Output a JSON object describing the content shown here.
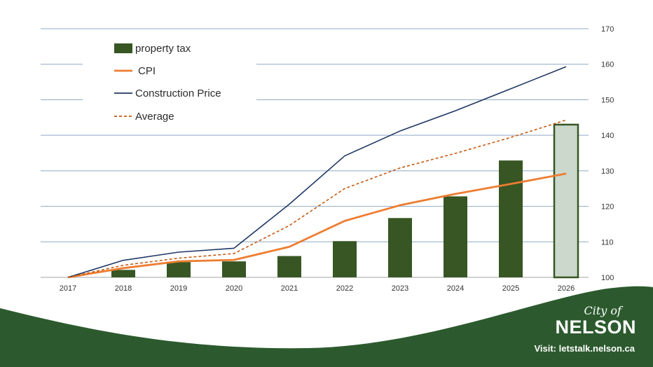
{
  "chart_data": {
    "type": "bar+line",
    "categories": [
      "2017",
      "2018",
      "2019",
      "2020",
      "2021",
      "2022",
      "2023",
      "2024",
      "2025",
      "2026"
    ],
    "ylim": [
      100,
      170
    ],
    "yticks": [
      100,
      110,
      120,
      130,
      140,
      150,
      160,
      170
    ],
    "series": [
      {
        "name": "property tax",
        "kind": "bar",
        "color": "#375623",
        "values": [
          100,
          102.1,
          104.3,
          104.5,
          106.0,
          110.2,
          116.7,
          122.8,
          132.9,
          143.0
        ],
        "highlight_last": true,
        "highlight_fill": "#ccd8cc"
      },
      {
        "name": "CPI",
        "kind": "line",
        "color": "#ed7d31",
        "dash": "",
        "values": [
          100,
          102.6,
          104.5,
          104.9,
          108.6,
          115.9,
          120.3,
          123.5,
          126.3,
          129.2
        ]
      },
      {
        "name": "Construction Price",
        "kind": "line",
        "color": "#203864",
        "dash": "",
        "values": [
          100,
          104.8,
          107.1,
          108.2,
          120.6,
          134.2,
          141.2,
          146.9,
          153.1,
          159.3
        ]
      },
      {
        "name": "Average",
        "kind": "line",
        "color": "#c55a11",
        "dash": "4,3",
        "values": [
          100,
          103.4,
          105.4,
          106.7,
          114.6,
          125.0,
          130.8,
          134.9,
          139.4,
          144.3
        ]
      }
    ],
    "legend": "top-left"
  },
  "branding": {
    "city_of": "City of",
    "name": "NELSON",
    "visit": "Visit: letstalk.nelson.ca",
    "wave_color": "#2c5a2e"
  }
}
